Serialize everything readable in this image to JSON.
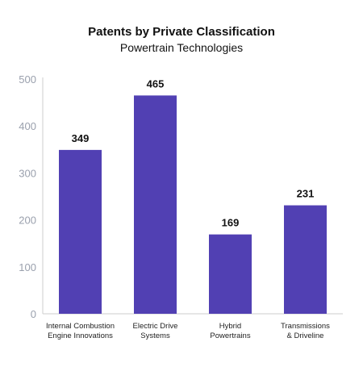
{
  "chart_data": {
    "type": "bar",
    "title": "Patents by Private Classification",
    "subtitle": "Powertrain Technologies",
    "xlabel": "",
    "ylabel": "",
    "ylim": [
      0,
      500
    ],
    "yticks": [
      0,
      100,
      200,
      300,
      400,
      500
    ],
    "categories": [
      [
        "Internal Combustion",
        "Engine Innovations"
      ],
      [
        "Electric Drive",
        "Systems"
      ],
      [
        "Hybrid",
        "Powertrains"
      ],
      [
        "Transmissions",
        "& Driveline"
      ]
    ],
    "values": [
      349,
      465,
      169,
      231
    ],
    "data_labels": [
      "349",
      "465",
      "169",
      "231"
    ],
    "bar_color": "#5140b3",
    "axis_color": "#cccccc",
    "tick_label_color": "#9aa0ad",
    "grid": false,
    "legend": "none"
  }
}
